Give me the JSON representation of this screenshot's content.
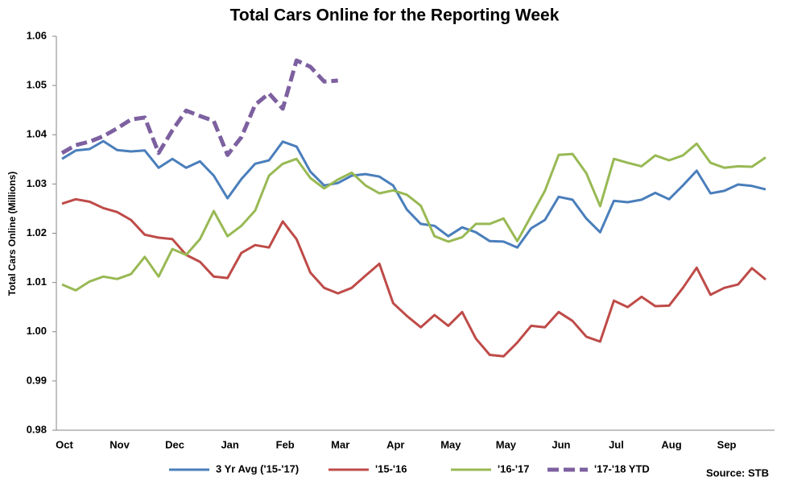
{
  "chart_data": {
    "type": "line",
    "title": "Total Cars Online for the Reporting Week",
    "y_label": "Total Cars Online (Millions)",
    "source": "Source:  STB",
    "categories": [
      "Oct",
      null,
      null,
      null,
      "Nov",
      null,
      null,
      null,
      "Dec",
      null,
      null,
      null,
      "Jan",
      null,
      null,
      null,
      "Feb",
      null,
      null,
      null,
      "Mar",
      null,
      null,
      null,
      "Apr",
      null,
      null,
      null,
      "May",
      null,
      null,
      null,
      "May",
      null,
      null,
      null,
      "Jun",
      null,
      null,
      null,
      "Jul",
      null,
      null,
      null,
      "Aug",
      null,
      null,
      null,
      "Sep",
      null,
      null,
      null
    ],
    "ylim": [
      0.98,
      1.06
    ],
    "yticks": [
      {
        "value": 0.98,
        "label": "0.98"
      },
      {
        "value": 0.99,
        "label": "0.99"
      },
      {
        "value": 1.0,
        "label": "1.00"
      },
      {
        "value": 1.01,
        "label": "1.01"
      },
      {
        "value": 1.02,
        "label": "1.02"
      },
      {
        "value": 1.03,
        "label": "1.03"
      },
      {
        "value": 1.04,
        "label": "1.04"
      },
      {
        "value": 1.05,
        "label": "1.05"
      },
      {
        "value": 1.06,
        "label": "1.06"
      }
    ],
    "grid": false,
    "legend": "bottom",
    "series": [
      {
        "name": "3 Yr Avg ('15-'17)",
        "color": "#4a7ebb",
        "line_style": "solid",
        "values": [
          1.0351,
          1.0368,
          1.0371,
          1.0387,
          1.0369,
          1.0366,
          1.0368,
          1.0333,
          1.0351,
          1.0333,
          1.0346,
          1.0317,
          1.0271,
          1.031,
          1.0341,
          1.0348,
          1.0386,
          1.0376,
          1.0325,
          1.0297,
          1.0302,
          1.0317,
          1.032,
          1.0315,
          1.0297,
          1.0248,
          1.0219,
          1.0215,
          1.0194,
          1.0212,
          1.0202,
          1.0184,
          1.0183,
          1.0171,
          1.021,
          1.0227,
          1.0274,
          1.0268,
          1.023,
          1.0202,
          1.0266,
          1.0263,
          1.0268,
          1.0282,
          1.0269,
          1.0297,
          1.0327,
          1.0281,
          1.0286,
          1.0299,
          1.0296,
          1.0289
        ]
      },
      {
        "name": "'15-'16",
        "color": "#be4b48",
        "line_style": "solid",
        "values": [
          1.026,
          1.0269,
          1.0264,
          1.0251,
          1.0243,
          1.0227,
          1.0197,
          1.0191,
          1.0188,
          1.0156,
          1.0142,
          1.0112,
          1.0109,
          1.016,
          1.0176,
          1.0171,
          1.0224,
          1.0188,
          1.012,
          1.0089,
          1.0078,
          1.0089,
          1.0114,
          1.0138,
          1.0058,
          1.0032,
          1.0009,
          1.0034,
          1.0012,
          1.004,
          0.9986,
          0.9953,
          0.995,
          0.9978,
          1.0012,
          1.0009,
          1.004,
          1.0022,
          0.999,
          0.998,
          1.0063,
          1.005,
          1.0071,
          1.0052,
          1.0053,
          1.0089,
          1.013,
          1.0075,
          1.0089,
          1.0096,
          1.0129,
          1.0106
        ]
      },
      {
        "name": "'16-'17",
        "color": "#98b954",
        "line_style": "solid",
        "values": [
          1.0096,
          1.0084,
          1.0102,
          1.0112,
          1.0107,
          1.0117,
          1.0152,
          1.0112,
          1.0168,
          1.0156,
          1.0188,
          1.0245,
          1.0194,
          1.0215,
          1.0246,
          1.0317,
          1.0341,
          1.0351,
          1.0312,
          1.0291,
          1.0309,
          1.0323,
          1.0297,
          1.0281,
          1.0287,
          1.0278,
          1.0256,
          1.0194,
          1.0183,
          1.0192,
          1.0219,
          1.0219,
          1.023,
          1.0184,
          1.0235,
          1.0286,
          1.0359,
          1.0361,
          1.0322,
          1.0255,
          1.0351,
          1.0343,
          1.0336,
          1.0358,
          1.0348,
          1.0358,
          1.0382,
          1.0343,
          1.0333,
          1.0336,
          1.0335,
          1.0354
        ]
      },
      {
        "name": "'17-'18 YTD",
        "color": "#7d60a0",
        "line_style": "dashed",
        "values": [
          1.0363,
          1.0379,
          1.0386,
          1.0397,
          1.0413,
          1.0431,
          1.0435,
          1.0363,
          1.0409,
          1.0449,
          1.0438,
          1.0428,
          1.0359,
          1.0395,
          1.0461,
          1.0484,
          1.0453,
          1.0551,
          1.0538,
          1.0508,
          1.051,
          null,
          null,
          null,
          null,
          null,
          null,
          null,
          null,
          null,
          null,
          null,
          null,
          null,
          null,
          null,
          null,
          null,
          null,
          null,
          null,
          null,
          null,
          null,
          null,
          null,
          null,
          null,
          null,
          null,
          null,
          null
        ]
      }
    ]
  }
}
